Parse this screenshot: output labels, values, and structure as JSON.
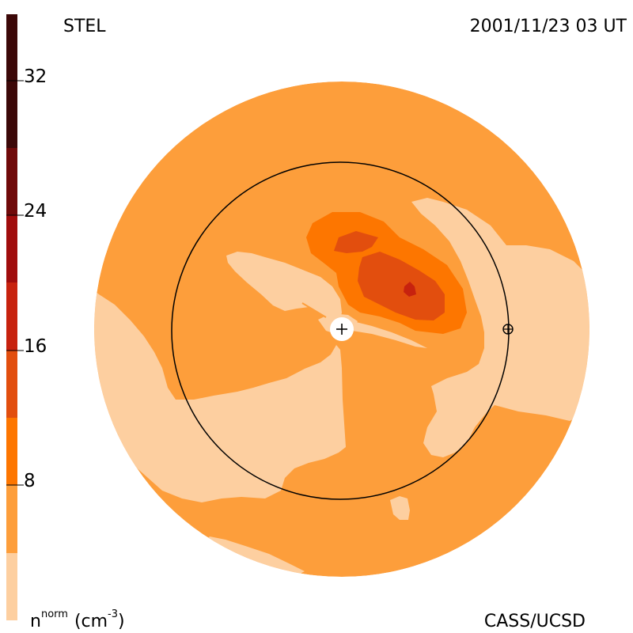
{
  "header": {
    "instrument": "STEL",
    "timestamp": "2001/11/23 03 UT"
  },
  "footer": {
    "credit": "CASS/UCSD"
  },
  "colorbar": {
    "quantity": "n",
    "quantity_superscript": "norm",
    "unit_open": "(cm",
    "unit_exponent": "-3",
    "unit_close": ")",
    "ticks": [
      "8",
      "16",
      "24",
      "32"
    ],
    "bands": [
      "#fdcfa0",
      "#fd9e3b",
      "#fd7600",
      "#e24e0e",
      "#c7220e",
      "#a00c0c",
      "#700a0a",
      "#3c0808"
    ]
  },
  "map": {
    "observer_marker": "crosshair-circle-icon",
    "sun_marker": "plus-in-white-disc-icon",
    "colors": {
      "level0": "#fdcfa0",
      "level1": "#fd9e3b",
      "level2": "#fd7600",
      "level3": "#e24e0e",
      "level4": "#c7220e",
      "outline": "#000000"
    }
  }
}
